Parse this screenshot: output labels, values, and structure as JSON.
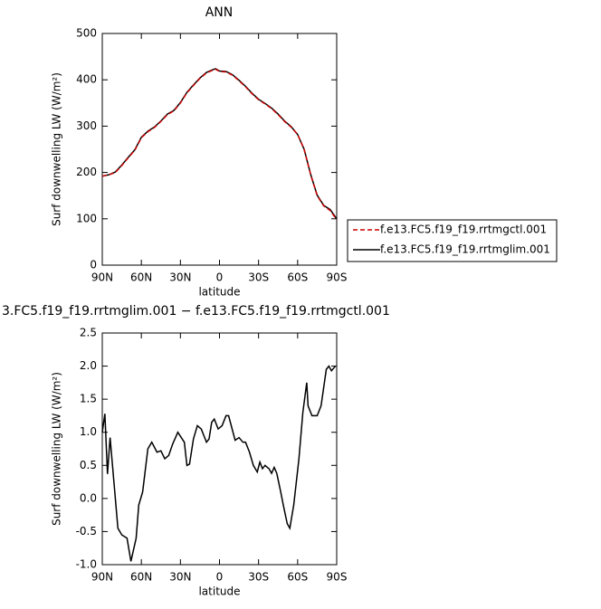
{
  "chart_data": [
    {
      "type": "line",
      "title": "ANN",
      "xlabel": "latitude",
      "ylabel": "Surf downwelling LW (W/m²)",
      "x": [
        90,
        85,
        80,
        75,
        70,
        65,
        60,
        55,
        50,
        45,
        40,
        35,
        30,
        25,
        20,
        15,
        10,
        5,
        3,
        0,
        -5,
        -10,
        -15,
        -20,
        -25,
        -30,
        -35,
        -40,
        -45,
        -50,
        -55,
        -60,
        -65,
        -70,
        -75,
        -80,
        -85,
        -90
      ],
      "series": [
        {
          "name": "f.e13.FC5.f19_f19.rrtmgctl.001",
          "color": "#cc0000",
          "linestyle": "dashed",
          "values": [
            192,
            195,
            200,
            215,
            232,
            248,
            275,
            288,
            297,
            310,
            325,
            333,
            350,
            372,
            388,
            403,
            415,
            421,
            423,
            418,
            417,
            410,
            398,
            385,
            370,
            357,
            348,
            338,
            325,
            310,
            298,
            282,
            250,
            195,
            150,
            128,
            118,
            98
          ]
        },
        {
          "name": "f.e13.FC5.f19_f19.rrtmglim.001",
          "color": "#000000",
          "linestyle": "solid",
          "values": [
            192,
            195,
            201,
            216,
            233,
            249,
            276,
            289,
            298,
            311,
            326,
            334,
            351,
            373,
            389,
            404,
            416,
            422,
            424,
            419,
            418,
            411,
            399,
            386,
            371,
            358,
            349,
            339,
            326,
            311,
            299,
            282,
            250,
            196,
            151,
            129,
            120,
            100
          ]
        }
      ],
      "xlim": [
        90,
        -90
      ],
      "xticks": [
        {
          "value": 90,
          "label": "90N"
        },
        {
          "value": 60,
          "label": "60N"
        },
        {
          "value": 30,
          "label": "30N"
        },
        0,
        {
          "value": -30,
          "label": "30S"
        },
        {
          "value": -60,
          "label": "60S"
        },
        {
          "value": -90,
          "label": "90S"
        }
      ],
      "ylim": [
        0,
        500
      ],
      "yticks": [
        0,
        100,
        200,
        300,
        400,
        500
      ],
      "legend": "right"
    },
    {
      "type": "line",
      "title": "3.FC5.f19_f19.rrtmglim.001 − f.e13.FC5.f19_f19.rrtmgctl.001",
      "xlabel": "latitude",
      "ylabel": "Surf downwelling LW (W/m²)",
      "x": [
        90,
        88,
        86,
        84,
        78,
        75,
        71,
        68,
        64,
        62,
        59,
        55,
        52,
        48,
        45,
        42,
        39,
        36,
        32,
        27,
        25,
        23,
        20,
        17,
        14,
        12,
        10,
        8,
        6,
        4,
        1,
        -2,
        -5,
        -7,
        -12,
        -15,
        -18,
        -20,
        -23,
        -26,
        -29,
        -31,
        -33,
        -35,
        -38,
        -40,
        -42,
        -44,
        -47,
        -49,
        -52,
        -54,
        -57,
        -61,
        -64,
        -67,
        -68,
        -71,
        -75,
        -78,
        -82,
        -84,
        -86,
        -89
      ],
      "values": [
        1.0,
        1.28,
        0.37,
        0.92,
        -0.45,
        -0.55,
        -0.6,
        -0.95,
        -0.6,
        -0.1,
        0.1,
        0.75,
        0.85,
        0.7,
        0.72,
        0.6,
        0.65,
        0.82,
        1.0,
        0.85,
        0.5,
        0.52,
        0.9,
        1.1,
        1.05,
        0.95,
        0.85,
        0.9,
        1.15,
        1.2,
        1.05,
        1.1,
        1.25,
        1.25,
        0.88,
        0.92,
        0.85,
        0.85,
        0.7,
        0.5,
        0.4,
        0.55,
        0.45,
        0.5,
        0.45,
        0.38,
        0.47,
        0.38,
        0.1,
        -0.1,
        -0.38,
        -0.45,
        -0.1,
        0.6,
        1.3,
        1.75,
        1.4,
        1.25,
        1.25,
        1.4,
        1.95,
        2.0,
        1.93,
        2.0
      ],
      "color": "#000000",
      "xlim": [
        90,
        -90
      ],
      "xticks": [
        {
          "value": 90,
          "label": "90N"
        },
        {
          "value": 60,
          "label": "60N"
        },
        {
          "value": 30,
          "label": "30N"
        },
        0,
        {
          "value": -30,
          "label": "30S"
        },
        {
          "value": -60,
          "label": "60S"
        },
        {
          "value": -90,
          "label": "90S"
        }
      ],
      "ylim": [
        -1.0,
        2.5
      ],
      "yticks": [
        {
          "value": -1.0,
          "label": "-1.0"
        },
        -0.5,
        {
          "value": 0,
          "label": "0.0"
        },
        0.5,
        {
          "value": 1.0,
          "label": "1.0"
        },
        1.5,
        {
          "value": 2.0,
          "label": "2.0"
        },
        2.5
      ]
    }
  ]
}
